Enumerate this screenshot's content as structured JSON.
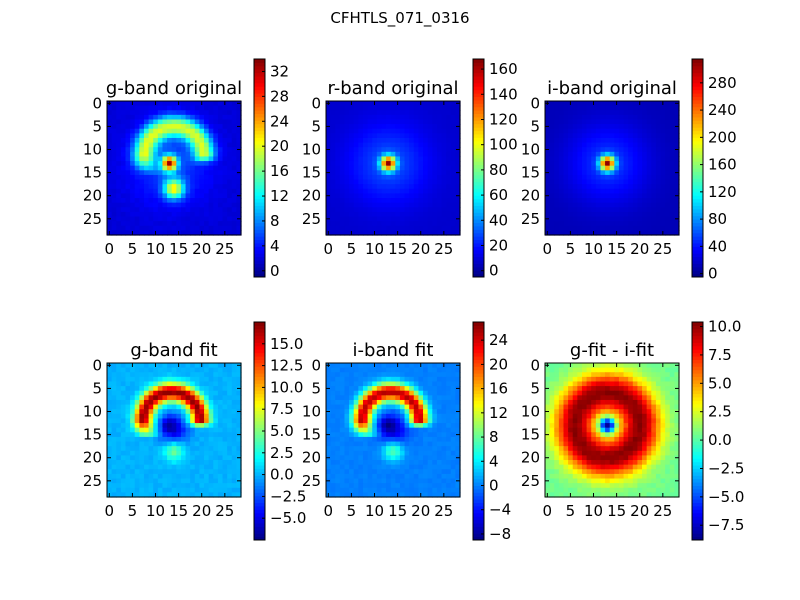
{
  "figure": {
    "suptitle": "CFHTLS_071_0316"
  },
  "chart_data": [
    {
      "type": "heatmap",
      "title": "g-band original",
      "x_ticks": [
        0,
        5,
        10,
        15,
        20,
        25
      ],
      "y_ticks": [
        0,
        5,
        10,
        15,
        20,
        25
      ],
      "xlim": [
        -0.5,
        28.5
      ],
      "ylim": [
        28.5,
        -0.5
      ],
      "colorbar": {
        "min": -1,
        "max": 34,
        "ticks": [
          0,
          4,
          8,
          12,
          16,
          20,
          24,
          28,
          32
        ],
        "tick_labels": [
          "0",
          "4",
          "8",
          "12",
          "16",
          "20",
          "24",
          "28",
          "32"
        ]
      },
      "features": {
        "background": 2,
        "ring_arc": {
          "center": [
            14,
            11.5
          ],
          "radius": 6.5,
          "width": 1.6,
          "peak": 16
        },
        "halo": 4,
        "core": {
          "center": [
            13,
            13
          ],
          "value": 33
        },
        "blob": {
          "center": [
            14,
            18.5
          ],
          "value": 17
        }
      }
    },
    {
      "type": "heatmap",
      "title": "r-band original",
      "x_ticks": [
        0,
        5,
        10,
        15,
        20,
        25
      ],
      "y_ticks": [
        0,
        5,
        10,
        15,
        20,
        25
      ],
      "xlim": [
        -0.5,
        28.5
      ],
      "ylim": [
        28.5,
        -0.5
      ],
      "colorbar": {
        "min": -5,
        "max": 168,
        "ticks": [
          0,
          20,
          40,
          60,
          80,
          100,
          120,
          140,
          160
        ],
        "tick_labels": [
          "0",
          "20",
          "40",
          "60",
          "80",
          "100",
          "120",
          "140",
          "160"
        ]
      },
      "features": {
        "background": 8,
        "halo": 22,
        "core": {
          "center": [
            13,
            13
          ],
          "value": 165
        }
      }
    },
    {
      "type": "heatmap",
      "title": "i-band original",
      "x_ticks": [
        0,
        5,
        10,
        15,
        20,
        25
      ],
      "y_ticks": [
        0,
        5,
        10,
        15,
        20,
        25
      ],
      "xlim": [
        -0.5,
        28.5
      ],
      "ylim": [
        28.5,
        -0.5
      ],
      "colorbar": {
        "min": -5,
        "max": 315,
        "ticks": [
          0,
          40,
          80,
          120,
          160,
          200,
          240,
          280
        ],
        "tick_labels": [
          "0",
          "40",
          "80",
          "120",
          "160",
          "200",
          "240",
          "280"
        ]
      },
      "features": {
        "background": 12,
        "halo": 40,
        "core": {
          "center": [
            13,
            13
          ],
          "value": 310
        }
      }
    },
    {
      "type": "heatmap",
      "title": "g-band fit",
      "x_ticks": [
        0,
        5,
        10,
        15,
        20,
        25
      ],
      "y_ticks": [
        0,
        5,
        10,
        15,
        20,
        25
      ],
      "xlim": [
        -0.5,
        28.5
      ],
      "ylim": [
        28.5,
        -0.5
      ],
      "colorbar": {
        "min": -7.5,
        "max": 17.5,
        "ticks": [
          -5,
          -2.5,
          0,
          2.5,
          5,
          7.5,
          10,
          12.5,
          15
        ],
        "tick_labels": [
          "−5.0",
          "−2.5",
          "0.0",
          "2.5",
          "5.0",
          "7.5",
          "10.0",
          "12.5",
          "15.0"
        ]
      },
      "features": {
        "background": 0,
        "ring_arc": {
          "center": [
            13.5,
            12
          ],
          "radius": 6.2,
          "width": 1.4,
          "peak": 17
        },
        "dip": {
          "center": [
            14,
            14
          ],
          "value": -5
        },
        "core": {
          "center": [
            13,
            13
          ],
          "value": -7
        },
        "blob": {
          "center": [
            14,
            18.5
          ],
          "value": 5
        }
      }
    },
    {
      "type": "heatmap",
      "title": "i-band fit",
      "x_ticks": [
        0,
        5,
        10,
        15,
        20,
        25
      ],
      "y_ticks": [
        0,
        5,
        10,
        15,
        20,
        25
      ],
      "xlim": [
        -0.5,
        28.5
      ],
      "ylim": [
        28.5,
        -0.5
      ],
      "colorbar": {
        "min": -9,
        "max": 27,
        "ticks": [
          -8,
          -4,
          0,
          4,
          8,
          12,
          16,
          20,
          24
        ],
        "tick_labels": [
          "−8",
          "−4",
          "0",
          "4",
          "8",
          "12",
          "16",
          "20",
          "24"
        ]
      },
      "features": {
        "background": 0,
        "ring_arc": {
          "center": [
            13.5,
            12
          ],
          "radius": 6.2,
          "width": 1.4,
          "peak": 25
        },
        "dip": {
          "center": [
            14,
            14
          ],
          "value": -6
        },
        "core": {
          "center": [
            13,
            13
          ],
          "value": -9
        },
        "blob": {
          "center": [
            14,
            18.5
          ],
          "value": 8
        }
      }
    },
    {
      "type": "heatmap",
      "title": "g-fit - i-fit",
      "x_ticks": [
        0,
        5,
        10,
        15,
        20,
        25
      ],
      "y_ticks": [
        0,
        5,
        10,
        15,
        20,
        25
      ],
      "xlim": [
        -0.5,
        28.5
      ],
      "ylim": [
        28.5,
        -0.5
      ],
      "colorbar": {
        "min": -8.8,
        "max": 10.4,
        "ticks": [
          -7.5,
          -5,
          -2.5,
          0,
          2.5,
          5,
          7.5,
          10
        ],
        "tick_labels": [
          "−7.5",
          "−5.0",
          "−2.5",
          "0.0",
          "2.5",
          "5.0",
          "7.5",
          "10.0"
        ]
      },
      "features": {
        "background": 0.5,
        "ring": {
          "center": [
            13,
            13
          ],
          "radius": 7,
          "width": 3.2,
          "peak": 10.2
        },
        "core": {
          "center": [
            13,
            13
          ],
          "value": -8.5
        }
      }
    }
  ]
}
